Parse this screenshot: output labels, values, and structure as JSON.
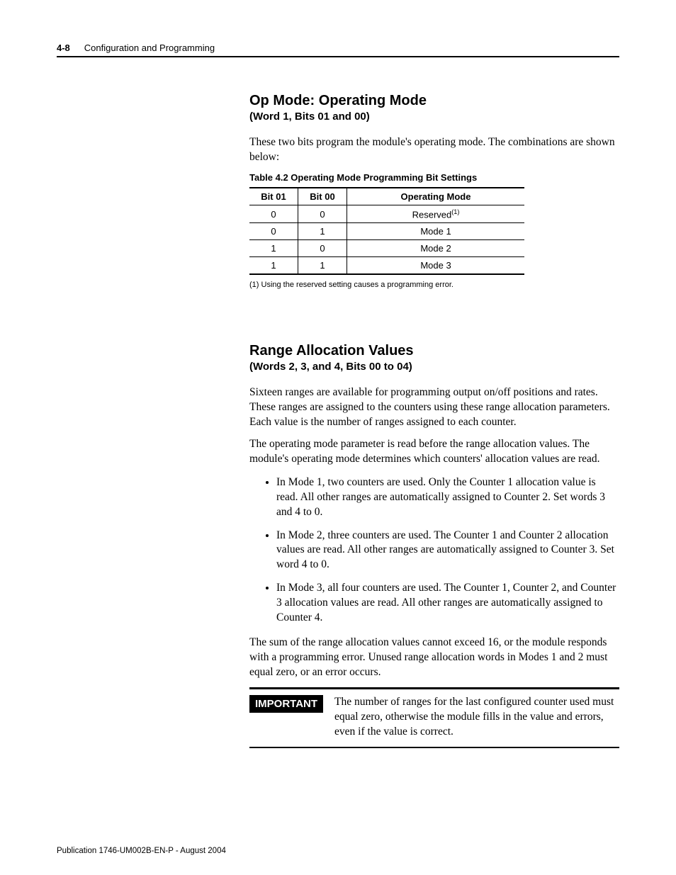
{
  "header": {
    "page_number": "4-8",
    "chapter_title": "Configuration and Programming"
  },
  "section1": {
    "title": "Op Mode: Operating Mode",
    "subtitle": "(Word 1, Bits 01 and 00)",
    "intro": "These two bits program the module's operating mode. The combinations are shown below:",
    "table_caption": "Table 4.2 Operating Mode Programming Bit Settings",
    "table": {
      "columns": [
        "Bit 01",
        "Bit 00",
        "Operating Mode"
      ],
      "rows": [
        [
          "0",
          "0",
          "Reserved"
        ],
        [
          "0",
          "1",
          "Mode 1"
        ],
        [
          "1",
          "0",
          "Mode 2"
        ],
        [
          "1",
          "1",
          "Mode 3"
        ]
      ],
      "row0_has_sup": true,
      "sup_text": "(1)"
    },
    "footnote": "(1)   Using the reserved setting causes a programming error."
  },
  "section2": {
    "title": "Range Allocation Values",
    "subtitle": "(Words 2, 3, and 4, Bits 00 to 04)",
    "para1": "Sixteen ranges are available for programming output on/off positions and rates. These ranges are assigned to the counters using these range allocation parameters. Each value is the number of ranges assigned to each counter.",
    "para2": "The operating mode parameter is read before the range allocation values. The module's operating mode determines which counters' allocation values are read.",
    "bullets": [
      "In Mode 1, two counters are used. Only the Counter 1 allocation value is read. All other ranges are automatically assigned to Counter 2. Set words 3 and 4 to 0.",
      "In Mode 2, three counters are used. The Counter 1 and Counter 2 allocation values are read. All other ranges are automatically assigned to Counter 3. Set word 4 to 0.",
      "In Mode 3, all four counters are used. The Counter 1, Counter 2, and Counter 3 allocation values are read. All other ranges are automatically assigned to Counter 4."
    ],
    "para3": "The sum of the range allocation values cannot exceed 16, or the module responds with a programming error. Unused range allocation words in Modes 1 and 2 must equal zero, or an error occurs.",
    "important_label": "IMPORTANT",
    "important_text": "The number of ranges for the last configured counter used must equal zero, otherwise the module fills in the value and errors, even if the value is correct."
  },
  "footer": {
    "publication": "Publication 1746-UM002B-EN-P - August 2004"
  }
}
